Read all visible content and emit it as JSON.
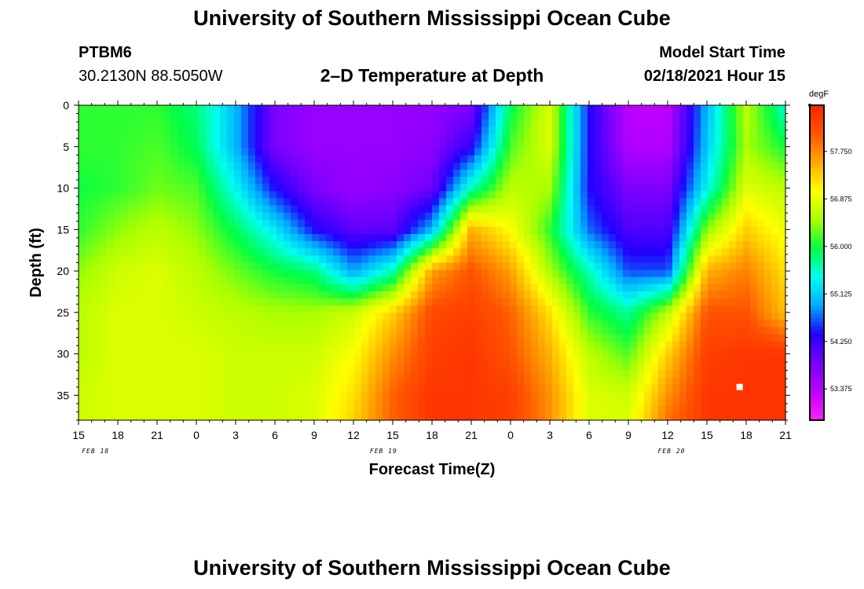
{
  "header": {
    "title_top": "University of Southern Mississippi Ocean Cube",
    "title_bottom": "University of Southern Mississippi Ocean Cube",
    "station": "PTBM6",
    "coords": "30.2130N 88.5050W",
    "plot_title": "2–D Temperature at Depth",
    "model_start_label": "Model Start Time",
    "model_start_value": "02/18/2021 Hour 15"
  },
  "chart_data": {
    "type": "heatmap",
    "title": "2–D Temperature at Depth",
    "xlabel": "Forecast Time(Z)",
    "ylabel": "Depth (ft)",
    "x_tick_labels": [
      "15",
      "18",
      "21",
      "0",
      "3",
      "6",
      "9",
      "12",
      "15",
      "18",
      "21",
      "0",
      "3",
      "6",
      "9",
      "12",
      "15",
      "18",
      "21"
    ],
    "date_labels": [
      "FEB 18",
      "FEB 19",
      "FEB 20"
    ],
    "x_hours": [
      0,
      3,
      6,
      9,
      12,
      15,
      18,
      21,
      24,
      27,
      30,
      33,
      36,
      39,
      42,
      45,
      48,
      51,
      54
    ],
    "y_depths_ft": [
      0,
      5,
      10,
      15,
      20,
      25,
      30,
      35
    ],
    "y_tick_labels": [
      "0",
      "5",
      "10",
      "15",
      "20",
      "25",
      "30",
      "35"
    ],
    "ylim_ft": [
      0,
      38
    ],
    "colorbar": {
      "unit": "degF",
      "tick_labels": [
        "57.750",
        "56.875",
        "56.000",
        "55.125",
        "54.250",
        "53.375"
      ],
      "tick_values": [
        57.75,
        56.875,
        56.0,
        55.125,
        54.25,
        53.375
      ],
      "range": [
        52.8,
        58.6
      ]
    },
    "grid": {
      "x_hours": [
        0,
        3,
        6,
        9,
        12,
        15,
        18,
        21,
        24,
        27,
        30,
        33,
        36,
        39,
        42,
        45,
        48,
        51,
        54
      ],
      "y_depths_ft": [
        0,
        5,
        10,
        15,
        20,
        25,
        30,
        35,
        38
      ],
      "values_degF": [
        [
          56.1,
          56.1,
          56.1,
          55.8,
          55.0,
          53.8,
          53.6,
          53.6,
          53.6,
          53.6,
          53.8,
          55.9,
          56.8,
          54.4,
          53.3,
          53.3,
          55.0,
          56.6,
          55.5
        ],
        [
          56.1,
          56.1,
          56.2,
          55.9,
          55.0,
          53.8,
          53.6,
          53.6,
          53.6,
          53.7,
          54.3,
          56.2,
          56.8,
          54.4,
          53.4,
          53.4,
          55.1,
          56.5,
          56.0
        ],
        [
          56.0,
          56.1,
          56.3,
          56.2,
          55.4,
          54.4,
          53.8,
          53.6,
          53.7,
          53.9,
          55.6,
          56.6,
          56.5,
          54.4,
          53.8,
          53.8,
          55.4,
          56.8,
          56.6
        ],
        [
          56.1,
          56.4,
          56.6,
          56.4,
          55.9,
          55.3,
          54.4,
          54.0,
          54.0,
          55.0,
          57.5,
          57.0,
          56.1,
          54.7,
          54.1,
          54.1,
          56.4,
          57.3,
          56.9
        ],
        [
          56.4,
          56.7,
          56.8,
          56.6,
          56.3,
          56.0,
          55.8,
          54.9,
          55.6,
          57.6,
          58.1,
          57.6,
          56.5,
          55.6,
          54.6,
          54.6,
          57.5,
          57.8,
          57.2
        ],
        [
          56.6,
          56.8,
          56.8,
          56.7,
          56.6,
          56.5,
          56.5,
          56.7,
          57.3,
          58.2,
          58.3,
          58.0,
          57.2,
          56.1,
          55.7,
          56.6,
          58.1,
          58.1,
          57.4
        ],
        [
          56.6,
          56.8,
          56.8,
          56.8,
          56.7,
          56.7,
          56.7,
          57.0,
          57.7,
          58.3,
          58.4,
          58.1,
          57.5,
          56.6,
          56.2,
          57.3,
          58.3,
          58.4,
          58.4
        ],
        [
          56.7,
          56.8,
          56.8,
          56.8,
          56.7,
          56.7,
          56.8,
          57.2,
          58.0,
          58.4,
          58.4,
          58.3,
          57.7,
          56.8,
          56.7,
          57.7,
          58.4,
          58.4,
          58.4
        ],
        [
          56.7,
          56.8,
          56.8,
          56.8,
          56.7,
          56.7,
          56.8,
          57.3,
          58.0,
          58.4,
          58.4,
          58.3,
          57.7,
          56.8,
          56.8,
          57.9,
          58.4,
          58.4,
          58.4
        ]
      ]
    },
    "marker": {
      "x_hour": 50.5,
      "depth_ft": 34,
      "color": "#ffffff"
    }
  },
  "colors": {
    "ramp": [
      "#ff22ff",
      "#bb00ff",
      "#7700ff",
      "#2200ff",
      "#00aaff",
      "#00ffee",
      "#00ff44",
      "#aaff00",
      "#ffff00",
      "#ffaa00",
      "#ff5500",
      "#ff2200"
    ]
  }
}
